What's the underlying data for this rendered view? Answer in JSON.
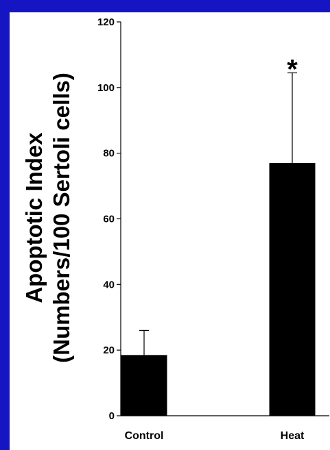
{
  "chart_data": {
    "type": "bar",
    "title": "",
    "xlabel": "",
    "ylabel_line1": "Apoptotic Index",
    "ylabel_line2": "(Numbers/100 Sertoli cells)",
    "ylim": [
      0,
      120
    ],
    "yticks": [
      0,
      20,
      40,
      60,
      80,
      100,
      120
    ],
    "categories": [
      "Control",
      "Heat"
    ],
    "values": [
      18.5,
      77
    ],
    "error_upper": [
      26,
      104.5
    ],
    "bar_color": "#000000",
    "grid": false,
    "legend": "none",
    "annotations": [
      {
        "category": "Heat",
        "text": "*"
      }
    ]
  },
  "colors": {
    "background": "#1515c4",
    "panel": "#ffffff"
  }
}
